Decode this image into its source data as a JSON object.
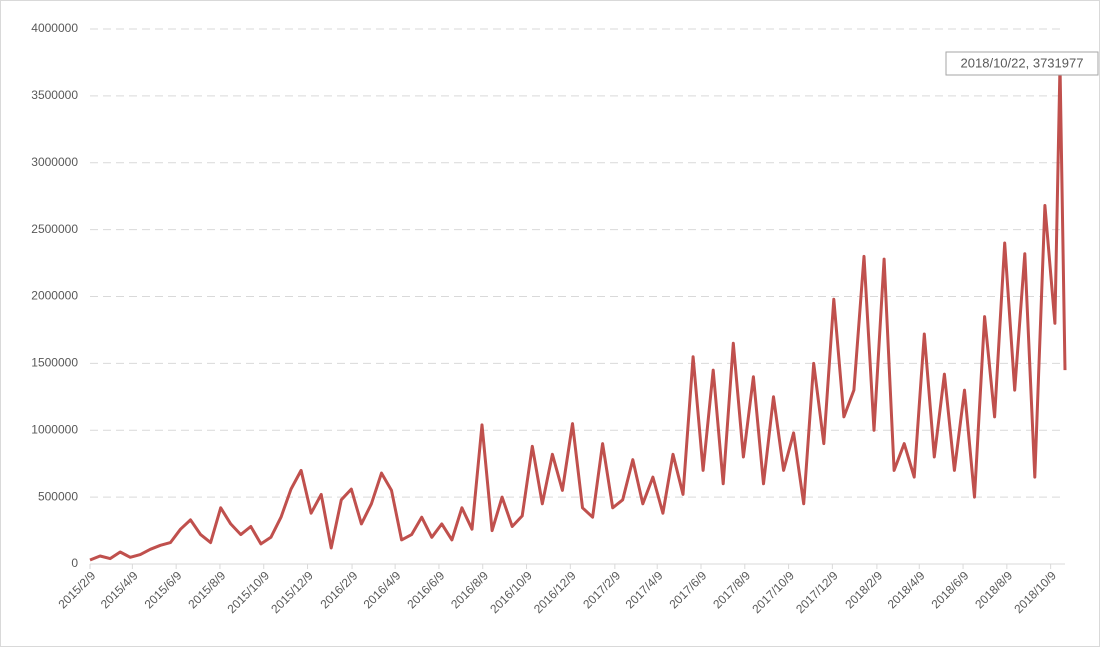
{
  "chart_data": {
    "type": "line",
    "annotation": "2018/10/22, 3731977",
    "color": "#c0504d",
    "x": [
      "2015/2/9",
      "2015/2/23",
      "2015/3/9",
      "2015/3/23",
      "2015/4/6",
      "2015/4/20",
      "2015/5/4",
      "2015/5/18",
      "2015/6/1",
      "2015/6/15",
      "2015/6/29",
      "2015/7/13",
      "2015/7/27",
      "2015/8/10",
      "2015/8/24",
      "2015/9/7",
      "2015/9/21",
      "2015/10/5",
      "2015/10/19",
      "2015/11/2",
      "2015/11/16",
      "2015/11/30",
      "2015/12/14",
      "2015/12/28",
      "2016/1/11",
      "2016/1/25",
      "2016/2/8",
      "2016/2/22",
      "2016/3/7",
      "2016/3/21",
      "2016/4/4",
      "2016/4/18",
      "2016/5/2",
      "2016/5/16",
      "2016/5/30",
      "2016/6/13",
      "2016/6/27",
      "2016/7/11",
      "2016/7/25",
      "2016/8/8",
      "2016/8/22",
      "2016/9/5",
      "2016/9/19",
      "2016/10/3",
      "2016/10/17",
      "2016/10/31",
      "2016/11/14",
      "2016/11/28",
      "2016/12/12",
      "2016/12/26",
      "2017/1/9",
      "2017/1/23",
      "2017/2/6",
      "2017/2/20",
      "2017/3/6",
      "2017/3/20",
      "2017/4/3",
      "2017/4/17",
      "2017/5/1",
      "2017/5/15",
      "2017/5/29",
      "2017/6/12",
      "2017/6/26",
      "2017/7/10",
      "2017/7/24",
      "2017/8/7",
      "2017/8/21",
      "2017/9/4",
      "2017/9/18",
      "2017/10/2",
      "2017/10/16",
      "2017/10/30",
      "2017/11/13",
      "2017/11/27",
      "2017/12/11",
      "2017/12/25",
      "2018/1/8",
      "2018/1/22",
      "2018/2/5",
      "2018/2/19",
      "2018/3/5",
      "2018/3/19",
      "2018/4/2",
      "2018/4/16",
      "2018/4/30",
      "2018/5/14",
      "2018/5/28",
      "2018/6/11",
      "2018/6/25",
      "2018/7/9",
      "2018/7/23",
      "2018/8/6",
      "2018/8/20",
      "2018/9/3",
      "2018/9/17",
      "2018/10/1",
      "2018/10/15",
      "2018/10/22",
      "2018/10/29"
    ],
    "values": [
      30000,
      60000,
      40000,
      90000,
      50000,
      70000,
      110000,
      140000,
      160000,
      260000,
      330000,
      220000,
      160000,
      420000,
      300000,
      220000,
      280000,
      150000,
      200000,
      350000,
      560000,
      700000,
      380000,
      520000,
      120000,
      480000,
      560000,
      300000,
      450000,
      680000,
      550000,
      180000,
      220000,
      350000,
      200000,
      300000,
      180000,
      420000,
      260000,
      1040000,
      250000,
      500000,
      280000,
      360000,
      880000,
      450000,
      820000,
      550000,
      1050000,
      420000,
      350000,
      900000,
      420000,
      480000,
      780000,
      450000,
      650000,
      380000,
      820000,
      520000,
      1550000,
      700000,
      1450000,
      600000,
      1650000,
      800000,
      1400000,
      600000,
      1250000,
      700000,
      980000,
      450000,
      1500000,
      900000,
      1980000,
      1100000,
      1300000,
      2300000,
      1000000,
      2280000,
      700000,
      900000,
      650000,
      1720000,
      800000,
      1420000,
      700000,
      1300000,
      500000,
      1850000,
      1100000,
      2400000,
      1300000,
      2320000,
      650000,
      2680000,
      1800000,
      3731977,
      1450000
    ],
    "xlim": [
      "2015/2/9",
      "2018/10/29"
    ],
    "xticks": [
      "2015/2/9",
      "2015/4/9",
      "2015/6/9",
      "2015/8/9",
      "2015/10/9",
      "2015/12/9",
      "2016/2/9",
      "2016/4/9",
      "2016/6/9",
      "2016/8/9",
      "2016/10/9",
      "2016/12/9",
      "2017/2/9",
      "2017/4/9",
      "2017/6/9",
      "2017/8/9",
      "2017/10/9",
      "2017/12/9",
      "2018/2/9",
      "2018/4/9",
      "2018/6/9",
      "2018/8/9",
      "2018/10/9"
    ],
    "ylim": [
      0,
      4000000
    ],
    "yticks": [
      0,
      500000,
      1000000,
      1500000,
      2000000,
      2500000,
      3000000,
      3500000,
      4000000
    ],
    "grid": true
  }
}
